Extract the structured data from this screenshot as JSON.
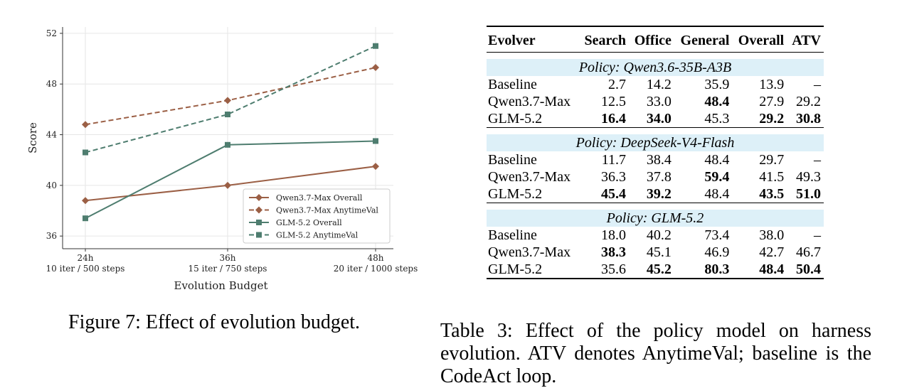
{
  "figure": {
    "caption": "Figure 7: Effect of evolution budget.",
    "chart_data": {
      "type": "line",
      "categories": [
        "24h",
        "36h",
        "48h"
      ],
      "category_sublabels": [
        "10 iter / 500 steps",
        "15 iter / 750 steps",
        "20 iter / 1000 steps"
      ],
      "xlabel": "Evolution Budget",
      "ylabel": "Score",
      "ylim": [
        35,
        52.5
      ],
      "yticks": [
        36,
        40,
        44,
        48,
        52
      ],
      "grid": true,
      "legend_placement": "lower-right",
      "series": [
        {
          "name": "Qwen3.7-Max Overall",
          "values": [
            38.8,
            40.0,
            41.5
          ],
          "color": "#9b5f45",
          "dash": false,
          "marker": "diamond"
        },
        {
          "name": "Qwen3.7-Max AnytimeVal",
          "values": [
            44.8,
            46.7,
            49.3
          ],
          "color": "#9b5f45",
          "dash": true,
          "marker": "diamond"
        },
        {
          "name": "GLM-5.2 Overall",
          "values": [
            37.4,
            43.2,
            43.5
          ],
          "color": "#4e7d6f",
          "dash": false,
          "marker": "square"
        },
        {
          "name": "GLM-5.2 AnytimeVal",
          "values": [
            42.6,
            45.6,
            51.0
          ],
          "color": "#4e7d6f",
          "dash": true,
          "marker": "square"
        }
      ]
    }
  },
  "table": {
    "headers": [
      "Evolver",
      "Search",
      "Office",
      "General",
      "Overall",
      "ATV"
    ],
    "groups": [
      {
        "policy": "Policy: Qwen3.6-35B-A3B",
        "rows": [
          {
            "cells": [
              "Baseline",
              "2.7",
              "14.2",
              "35.9",
              "13.9",
              "–"
            ],
            "bold": []
          },
          {
            "cells": [
              "Qwen3.7-Max",
              "12.5",
              "33.0",
              "48.4",
              "27.9",
              "29.2"
            ],
            "bold": [
              3
            ]
          },
          {
            "cells": [
              "GLM-5.2",
              "16.4",
              "34.0",
              "45.3",
              "29.2",
              "30.8"
            ],
            "bold": [
              1,
              2,
              4,
              5
            ]
          }
        ]
      },
      {
        "policy": "Policy: DeepSeek-V4-Flash",
        "rows": [
          {
            "cells": [
              "Baseline",
              "11.7",
              "38.4",
              "48.4",
              "29.7",
              "–"
            ],
            "bold": []
          },
          {
            "cells": [
              "Qwen3.7-Max",
              "36.3",
              "37.8",
              "59.4",
              "41.5",
              "49.3"
            ],
            "bold": [
              3
            ]
          },
          {
            "cells": [
              "GLM-5.2",
              "45.4",
              "39.2",
              "48.4",
              "43.5",
              "51.0"
            ],
            "bold": [
              1,
              2,
              4,
              5
            ]
          }
        ]
      },
      {
        "policy": "Policy: GLM-5.2",
        "rows": [
          {
            "cells": [
              "Baseline",
              "18.0",
              "40.2",
              "73.4",
              "38.0",
              "–"
            ],
            "bold": []
          },
          {
            "cells": [
              "Qwen3.7-Max",
              "38.3",
              "45.1",
              "46.9",
              "42.7",
              "46.7"
            ],
            "bold": [
              1
            ]
          },
          {
            "cells": [
              "GLM-5.2",
              "35.6",
              "45.2",
              "80.3",
              "48.4",
              "50.4"
            ],
            "bold": [
              2,
              3,
              4,
              5
            ]
          }
        ]
      }
    ],
    "caption": "Table 3: Effect of the policy model on harness evolution. ATV denotes AnytimeVal; baseline is the CodeAct loop."
  }
}
